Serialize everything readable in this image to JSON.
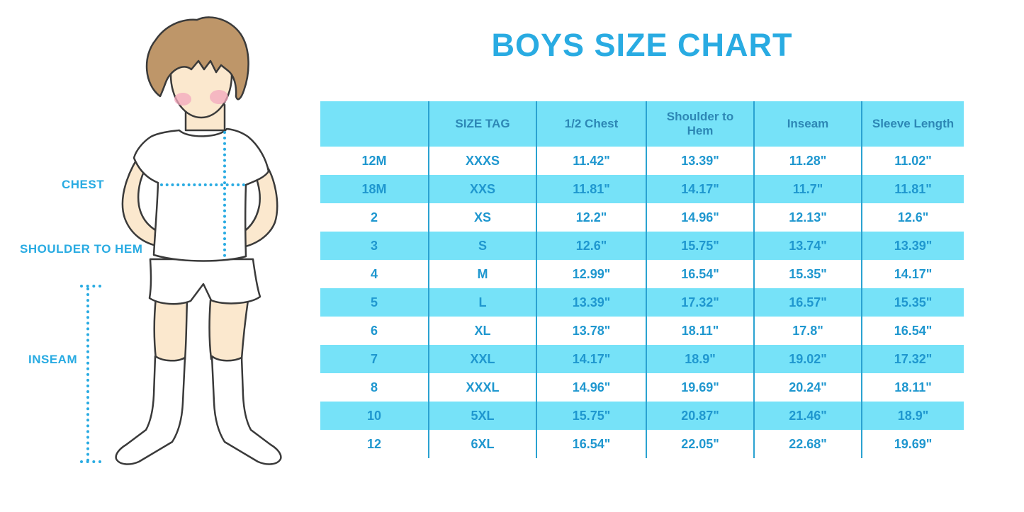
{
  "title": "BOYS SIZE CHART",
  "figure_labels": {
    "chest": "CHEST",
    "shoulder_to_hem": "SHOULDER TO HEM",
    "inseam": "INSEAM"
  },
  "chart_data": {
    "type": "table",
    "title": "BOYS SIZE CHART",
    "columns": [
      "",
      "SIZE TAG",
      "1/2 Chest",
      "Shoulder to Hem",
      "Inseam",
      "Sleeve Length"
    ],
    "rows": [
      [
        "12M",
        "XXXS",
        "11.42\"",
        "13.39\"",
        "11.28\"",
        "11.02\""
      ],
      [
        "18M",
        "XXS",
        "11.81\"",
        "14.17\"",
        "11.7\"",
        "11.81\""
      ],
      [
        "2",
        "XS",
        "12.2\"",
        "14.96\"",
        "12.13\"",
        "12.6\""
      ],
      [
        "3",
        "S",
        "12.6\"",
        "15.75\"",
        "13.74\"",
        "13.39\""
      ],
      [
        "4",
        "M",
        "12.99\"",
        "16.54\"",
        "15.35\"",
        "14.17\""
      ],
      [
        "5",
        "L",
        "13.39\"",
        "17.32\"",
        "16.57\"",
        "15.35\""
      ],
      [
        "6",
        "XL",
        "13.78\"",
        "18.11\"",
        "17.8\"",
        "16.54\""
      ],
      [
        "7",
        "XXL",
        "14.17\"",
        "18.9\"",
        "19.02\"",
        "17.32\""
      ],
      [
        "8",
        "XXXL",
        "14.96\"",
        "19.69\"",
        "20.24\"",
        "18.11\""
      ],
      [
        "10",
        "5XL",
        "15.75\"",
        "20.87\"",
        "21.46\"",
        "18.9\""
      ],
      [
        "12",
        "6XL",
        "16.54\"",
        "22.05\"",
        "22.68\"",
        "19.69\""
      ]
    ],
    "layout_hints": {
      "header_background": "cyan",
      "data_row_striping": "alternating white / cyan starting with white",
      "column_separators": "vertical blue lines between all columns, no outer border, no horizontal lines"
    }
  },
  "colors": {
    "accent_blue": "#29ABE2",
    "table_fill_cyan": "#76E2F8",
    "grid_line_blue": "#2AA2D1",
    "header_text": "#2D87B5",
    "cell_text": "#1F97CF",
    "skin": "#FBE8CE",
    "hair": "#BE9669",
    "blush": "#F4A8BE",
    "outline": "#3A3A3A"
  }
}
